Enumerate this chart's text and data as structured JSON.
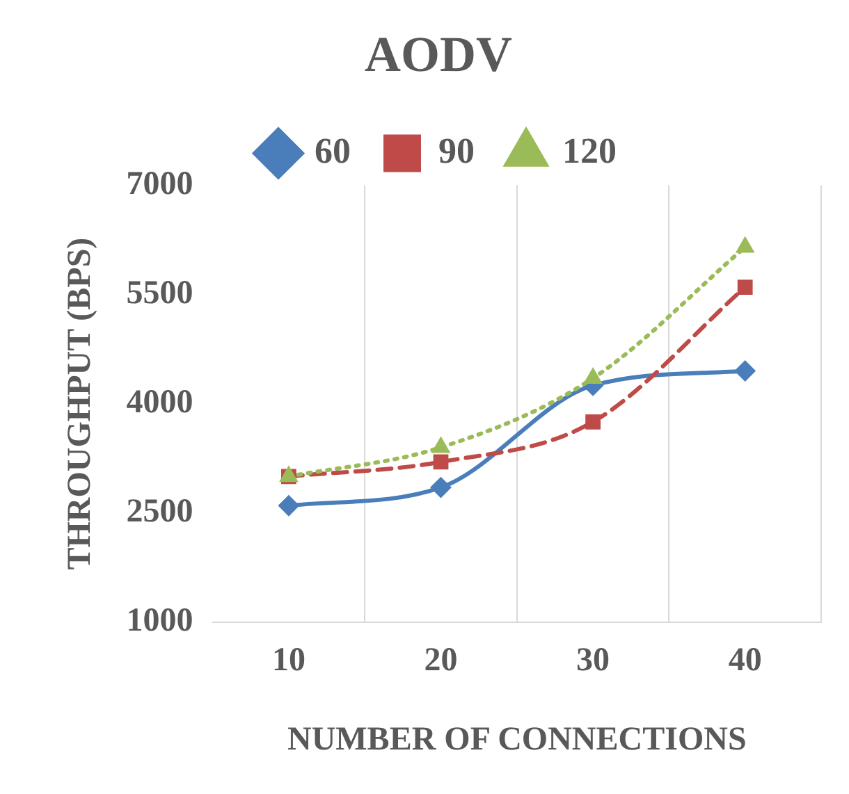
{
  "chart_data": {
    "type": "line",
    "title": "AODV",
    "xlabel": "NUMBER OF CONNECTIONS",
    "ylabel": "THROUGHPUT (BPS)",
    "categories": [
      "10",
      "20",
      "30",
      "40"
    ],
    "series": [
      {
        "name": "60",
        "color": "#4a7ebb",
        "marker": "diamond",
        "line_style": "solid",
        "values": [
          2600,
          2850,
          4250,
          4450
        ]
      },
      {
        "name": "90",
        "color": "#be4b48",
        "marker": "square",
        "line_style": "dashed",
        "values": [
          3000,
          3200,
          3750,
          5600
        ]
      },
      {
        "name": "120",
        "color": "#9bbb59",
        "marker": "triangle",
        "line_style": "dotted",
        "values": [
          3000,
          3400,
          4350,
          6150
        ]
      }
    ],
    "ylim": [
      1000,
      7000
    ],
    "yticks": [
      1000,
      2500,
      4000,
      5500,
      7000
    ],
    "grid": "x",
    "legend": "top"
  }
}
